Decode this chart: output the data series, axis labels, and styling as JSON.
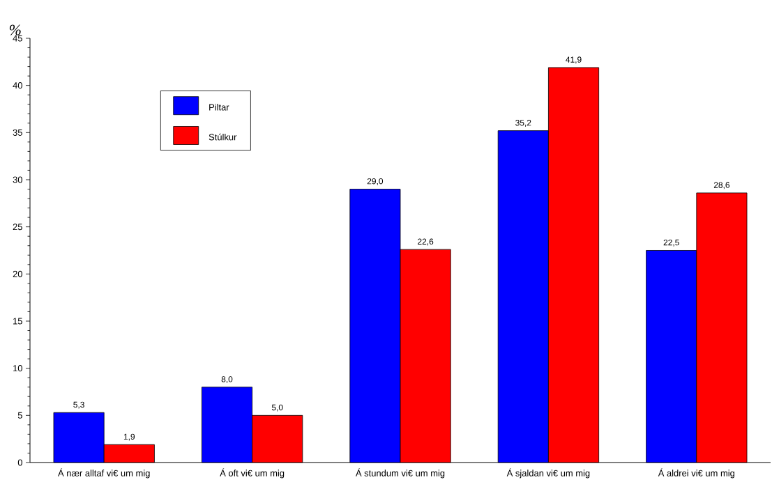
{
  "chart_data": {
    "type": "bar",
    "ylabel": "%",
    "categories": [
      "Á nær alltaf vi€ um mig",
      "Á oft vi€ um mig",
      "Á stundum vi€ um mig",
      "Á sjaldan vi€ um mig",
      "Á aldrei vi€ um mig"
    ],
    "series": [
      {
        "name": "Piltar",
        "color": "#0000ff",
        "values": [
          5.3,
          8.0,
          29.0,
          35.2,
          22.5
        ],
        "value_labels": [
          "5,3",
          "8,0",
          "29,0",
          "35,2",
          "22,5"
        ]
      },
      {
        "name": "Stúlkur",
        "color": "#ff0000",
        "values": [
          1.9,
          5.0,
          22.6,
          41.9,
          28.6
        ],
        "value_labels": [
          "1,9",
          "5,0",
          "22,6",
          "41,9",
          "28,6"
        ]
      }
    ],
    "ylim": [
      0,
      45
    ],
    "yticks": [
      0,
      5,
      10,
      15,
      20,
      25,
      30,
      35,
      40,
      45
    ],
    "grid": false,
    "legend": "top left"
  }
}
